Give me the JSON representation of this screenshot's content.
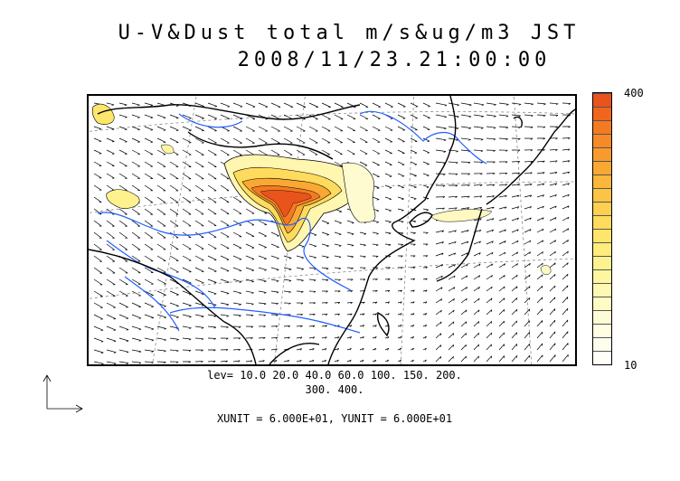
{
  "title_line1": "U-V&Dust total m/s&ug/m3 JST",
  "title_line2": "2008/11/23.21:00:00",
  "colorbar": {
    "max_label": "400",
    "min_label": "10",
    "colors": [
      "#e8541c",
      "#f0661e",
      "#f47a22",
      "#f68a28",
      "#f89a2e",
      "#faa834",
      "#fbb63c",
      "#fcc445",
      "#fdd04f",
      "#fedb5c",
      "#fee56b",
      "#feec7c",
      "#fef28e",
      "#fef6a0",
      "#fef9b2",
      "#fefbc4",
      "#fefcd4",
      "#fffde2",
      "#fffeee",
      "#fffff8"
    ]
  },
  "levels_line1": "lev= 10.0 20.0 40.0 60.0 100. 150. 200.",
  "levels_line2": "300. 400.",
  "units_line": "XUNIT = 6.000E+01, YUNIT = 6.000E+01",
  "colors": {
    "coast": "#000000",
    "river": "#2060ff",
    "grid": "#888888",
    "dust_high": "#e8541c"
  }
}
